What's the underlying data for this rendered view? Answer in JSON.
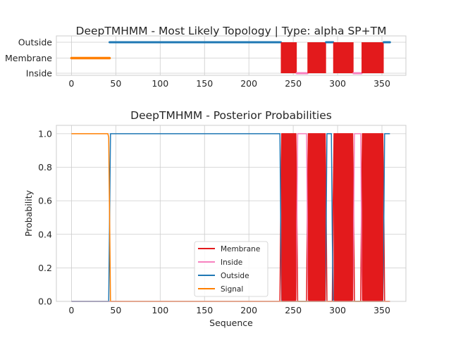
{
  "colors": {
    "membrane": "#e31a1c",
    "inside": "#f781bf",
    "outside": "#1f78b4",
    "signal": "#ff7f00",
    "grid": "#cccccc"
  },
  "chart_data": [
    {
      "type": "line",
      "title": "DeepTMHMM - Most Likely Topology | Type: alpha SP+TM",
      "xlabel": "",
      "ylabel": "",
      "xlim": [
        -17,
        377
      ],
      "ylim": [
        0,
        2
      ],
      "x_ticks": [
        0,
        50,
        100,
        150,
        200,
        250,
        300,
        350
      ],
      "y_ticks": [
        {
          "value": 2,
          "label": "Outside"
        },
        {
          "value": 1,
          "label": "Membrane"
        },
        {
          "value": 0,
          "label": "Inside"
        }
      ],
      "grid": true,
      "segments": [
        {
          "label": "Signal",
          "start": 0,
          "end": 43,
          "level": 1
        },
        {
          "label": "Outside",
          "start": 43,
          "end": 236,
          "level": 2
        },
        {
          "label": "Membrane",
          "start": 236,
          "end": 254,
          "level": "band"
        },
        {
          "label": "Inside",
          "start": 254,
          "end": 266,
          "level": 0
        },
        {
          "label": "Membrane",
          "start": 266,
          "end": 287,
          "level": "band"
        },
        {
          "label": "Outside",
          "start": 287,
          "end": 295,
          "level": 2
        },
        {
          "label": "Membrane",
          "start": 295,
          "end": 318,
          "level": "band"
        },
        {
          "label": "Inside",
          "start": 318,
          "end": 327,
          "level": 0
        },
        {
          "label": "Membrane",
          "start": 327,
          "end": 352,
          "level": "band"
        },
        {
          "label": "Outside",
          "start": 352,
          "end": 359,
          "level": 2
        }
      ]
    },
    {
      "type": "line",
      "title": "DeepTMHMM - Posterior Probabilities",
      "xlabel": "Sequence",
      "ylabel": "Probability",
      "xlim": [
        -17,
        377
      ],
      "ylim": [
        0,
        1.05
      ],
      "x_ticks": [
        0,
        50,
        100,
        150,
        200,
        250,
        300,
        350
      ],
      "y_ticks": [
        0.0,
        0.2,
        0.4,
        0.6,
        0.8,
        1.0
      ],
      "y_tick_labels": [
        "0.0",
        "0.2",
        "0.4",
        "0.6",
        "0.8",
        "1.0"
      ],
      "grid": true,
      "legend_placement": "lower-center",
      "series": [
        {
          "name": "Membrane",
          "x": [
            0,
            235,
            236,
            237,
            253,
            254,
            255,
            265,
            266,
            267,
            286,
            287,
            288,
            294,
            295,
            296,
            317,
            318,
            319,
            326,
            327,
            328,
            351,
            352,
            353,
            359
          ],
          "y": [
            0,
            0,
            0.6,
            1,
            1,
            0.6,
            0,
            0,
            0.6,
            1,
            1,
            0.6,
            0,
            0,
            0.6,
            1,
            1,
            0.6,
            0,
            0,
            0.6,
            1,
            1,
            0.6,
            0,
            0
          ]
        },
        {
          "name": "Inside",
          "x": [
            0,
            253,
            254,
            255,
            256,
            264,
            265,
            266,
            267,
            317,
            318,
            319,
            320,
            325,
            326,
            327,
            328,
            359
          ],
          "y": [
            0,
            0,
            0.4,
            1,
            1,
            1,
            1,
            0.4,
            0,
            0,
            0.4,
            1,
            1,
            1,
            1,
            0.4,
            0,
            0
          ]
        },
        {
          "name": "Outside",
          "x": [
            0,
            42,
            43,
            44,
            235,
            236,
            237,
            286,
            287,
            288,
            293,
            294,
            295,
            351,
            352,
            353,
            359
          ],
          "y": [
            0,
            0,
            0.5,
            1,
            1,
            0.4,
            0,
            0,
            0.4,
            1,
            1,
            0.4,
            0,
            0,
            0.4,
            1,
            1
          ]
        },
        {
          "name": "Signal",
          "x": [
            0,
            41,
            42,
            43,
            44,
            359
          ],
          "y": [
            1,
            1,
            0.98,
            0.5,
            0,
            0
          ]
        }
      ]
    }
  ]
}
